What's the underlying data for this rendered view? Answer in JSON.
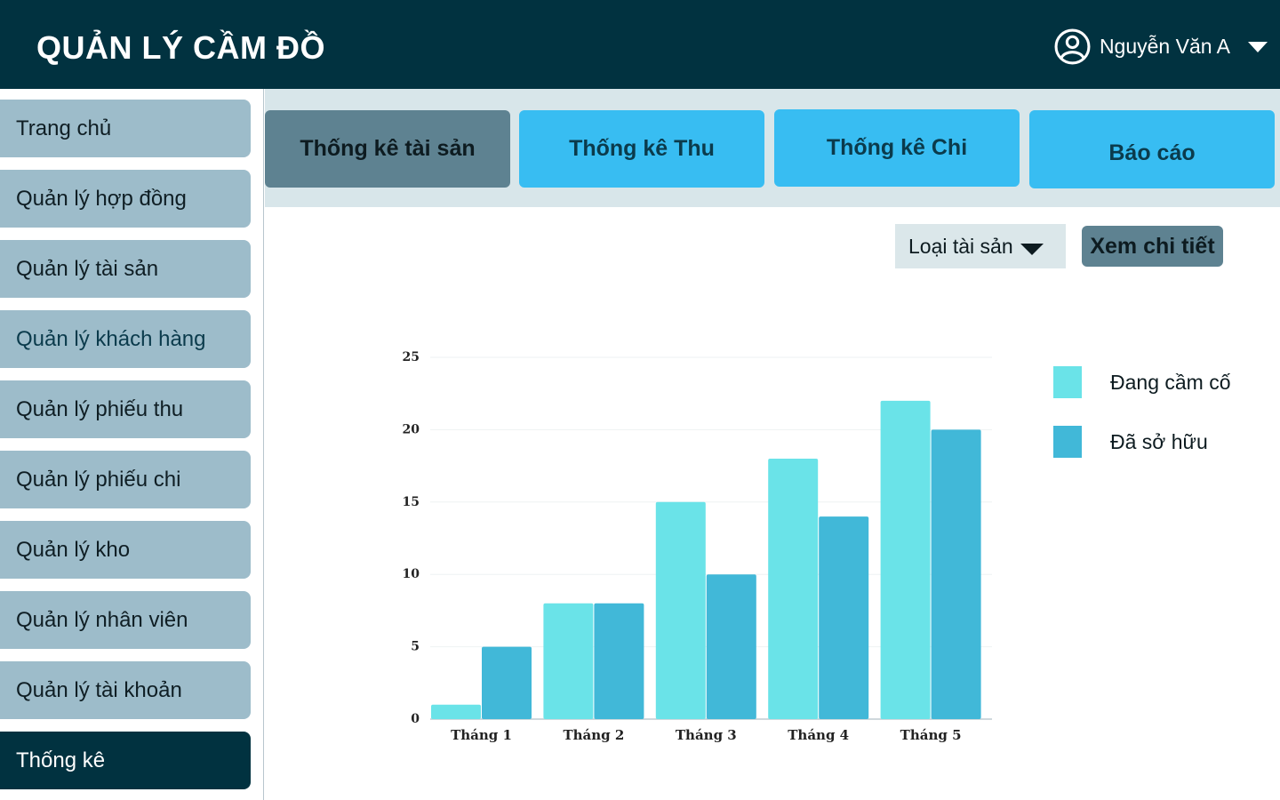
{
  "header": {
    "title": "QUẢN LÝ CẦM ĐỒ",
    "user_name": "Nguyễn Văn A"
  },
  "sidebar": {
    "items": [
      {
        "label": "Trang chủ"
      },
      {
        "label": "Quản lý hợp đồng"
      },
      {
        "label": "Quản lý tài sản"
      },
      {
        "label": "Quản lý khách hàng"
      },
      {
        "label": "Quản lý phiếu thu"
      },
      {
        "label": "Quản lý phiếu chi"
      },
      {
        "label": "Quản lý kho"
      },
      {
        "label": "Quản lý nhân viên"
      },
      {
        "label": "Quản lý tài khoản"
      },
      {
        "label": "Thống kê"
      }
    ],
    "active_index": 9
  },
  "tabs": [
    {
      "label": "Thống kê tài sản",
      "active": true
    },
    {
      "label": "Thống kê Thu",
      "active": false
    },
    {
      "label": "Thống kê Chi",
      "active": false
    },
    {
      "label": "Báo cáo",
      "active": false
    }
  ],
  "controls": {
    "asset_type_select": "Loại tài sản",
    "detail_button": "Xem chi tiết"
  },
  "colors": {
    "header_bg": "#013240",
    "series_1": "#6ae3e8",
    "series_2": "#41b8d8"
  },
  "chart_data": {
    "type": "bar",
    "categories": [
      "Tháng 1",
      "Tháng 2",
      "Tháng 3",
      "Tháng 4",
      "Tháng 5"
    ],
    "series": [
      {
        "name": "Đang cầm cố",
        "values": [
          1,
          8,
          15,
          18,
          22
        ]
      },
      {
        "name": "Đã sở hữu",
        "values": [
          5,
          8,
          10,
          14,
          20
        ]
      }
    ],
    "yticks": [
      "0",
      "5",
      "10",
      "15",
      "20",
      "25"
    ],
    "ylim": [
      0,
      25
    ],
    "grid": true,
    "legend": "right"
  }
}
